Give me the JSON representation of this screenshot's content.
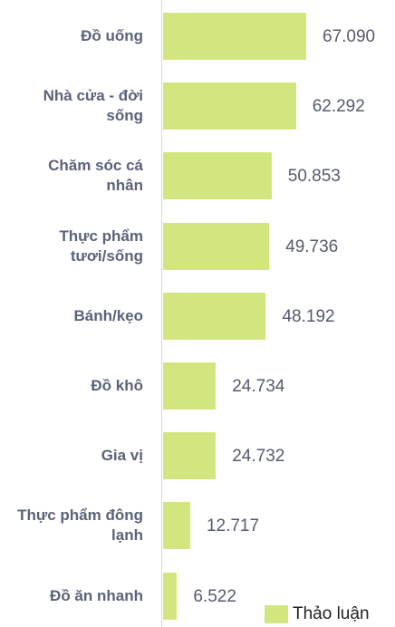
{
  "chart_data": {
    "type": "bar",
    "orientation": "horizontal",
    "categories": [
      "Đồ uống",
      "Nhà cửa - đời sống",
      "Chăm sóc cá nhân",
      "Thực phẩm tươi/sống",
      "Bánh/kẹo",
      "Đồ khô",
      "Gia vị",
      "Thực phẩm đông lạnh",
      "Đồ ăn nhanh"
    ],
    "series": [
      {
        "name": "Thảo luận",
        "color": "#d2e680",
        "values": [
          67090,
          62292,
          50853,
          49736,
          48192,
          24734,
          24732,
          12717,
          6522
        ],
        "value_labels": [
          "67.090",
          "62.292",
          "50.853",
          "49.736",
          "48.192",
          "24.734",
          "24.732",
          "12.717",
          "6.522"
        ]
      }
    ],
    "legend": "bottom-right"
  }
}
